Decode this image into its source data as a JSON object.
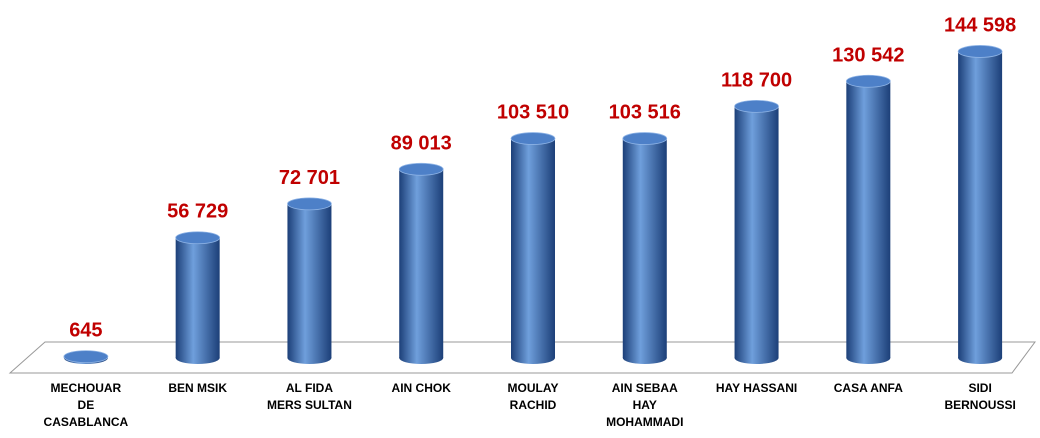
{
  "chart_data": {
    "type": "bar",
    "categories": [
      "MECHOUAR\nDE\nCASABLANCA",
      "BEN MSIK",
      "AL FIDA\nMERS SULTAN",
      "AIN CHOK",
      "MOULAY\nRACHID",
      "AIN SEBAA\nHAY\nMOHAMMADI",
      "HAY HASSANI",
      "CASA ANFA",
      "SIDI\nBERNOUSSI"
    ],
    "values": [
      645,
      56729,
      72701,
      89013,
      103510,
      103516,
      118700,
      130542,
      144598
    ],
    "value_labels": [
      "645",
      "56 729",
      "72 701",
      "89 013",
      "103 510",
      "103 516",
      "118 700",
      "130 542",
      "144 598"
    ],
    "color": "#2e64b0",
    "label_color": "#c00000",
    "ylim": [
      0,
      150000
    ]
  }
}
